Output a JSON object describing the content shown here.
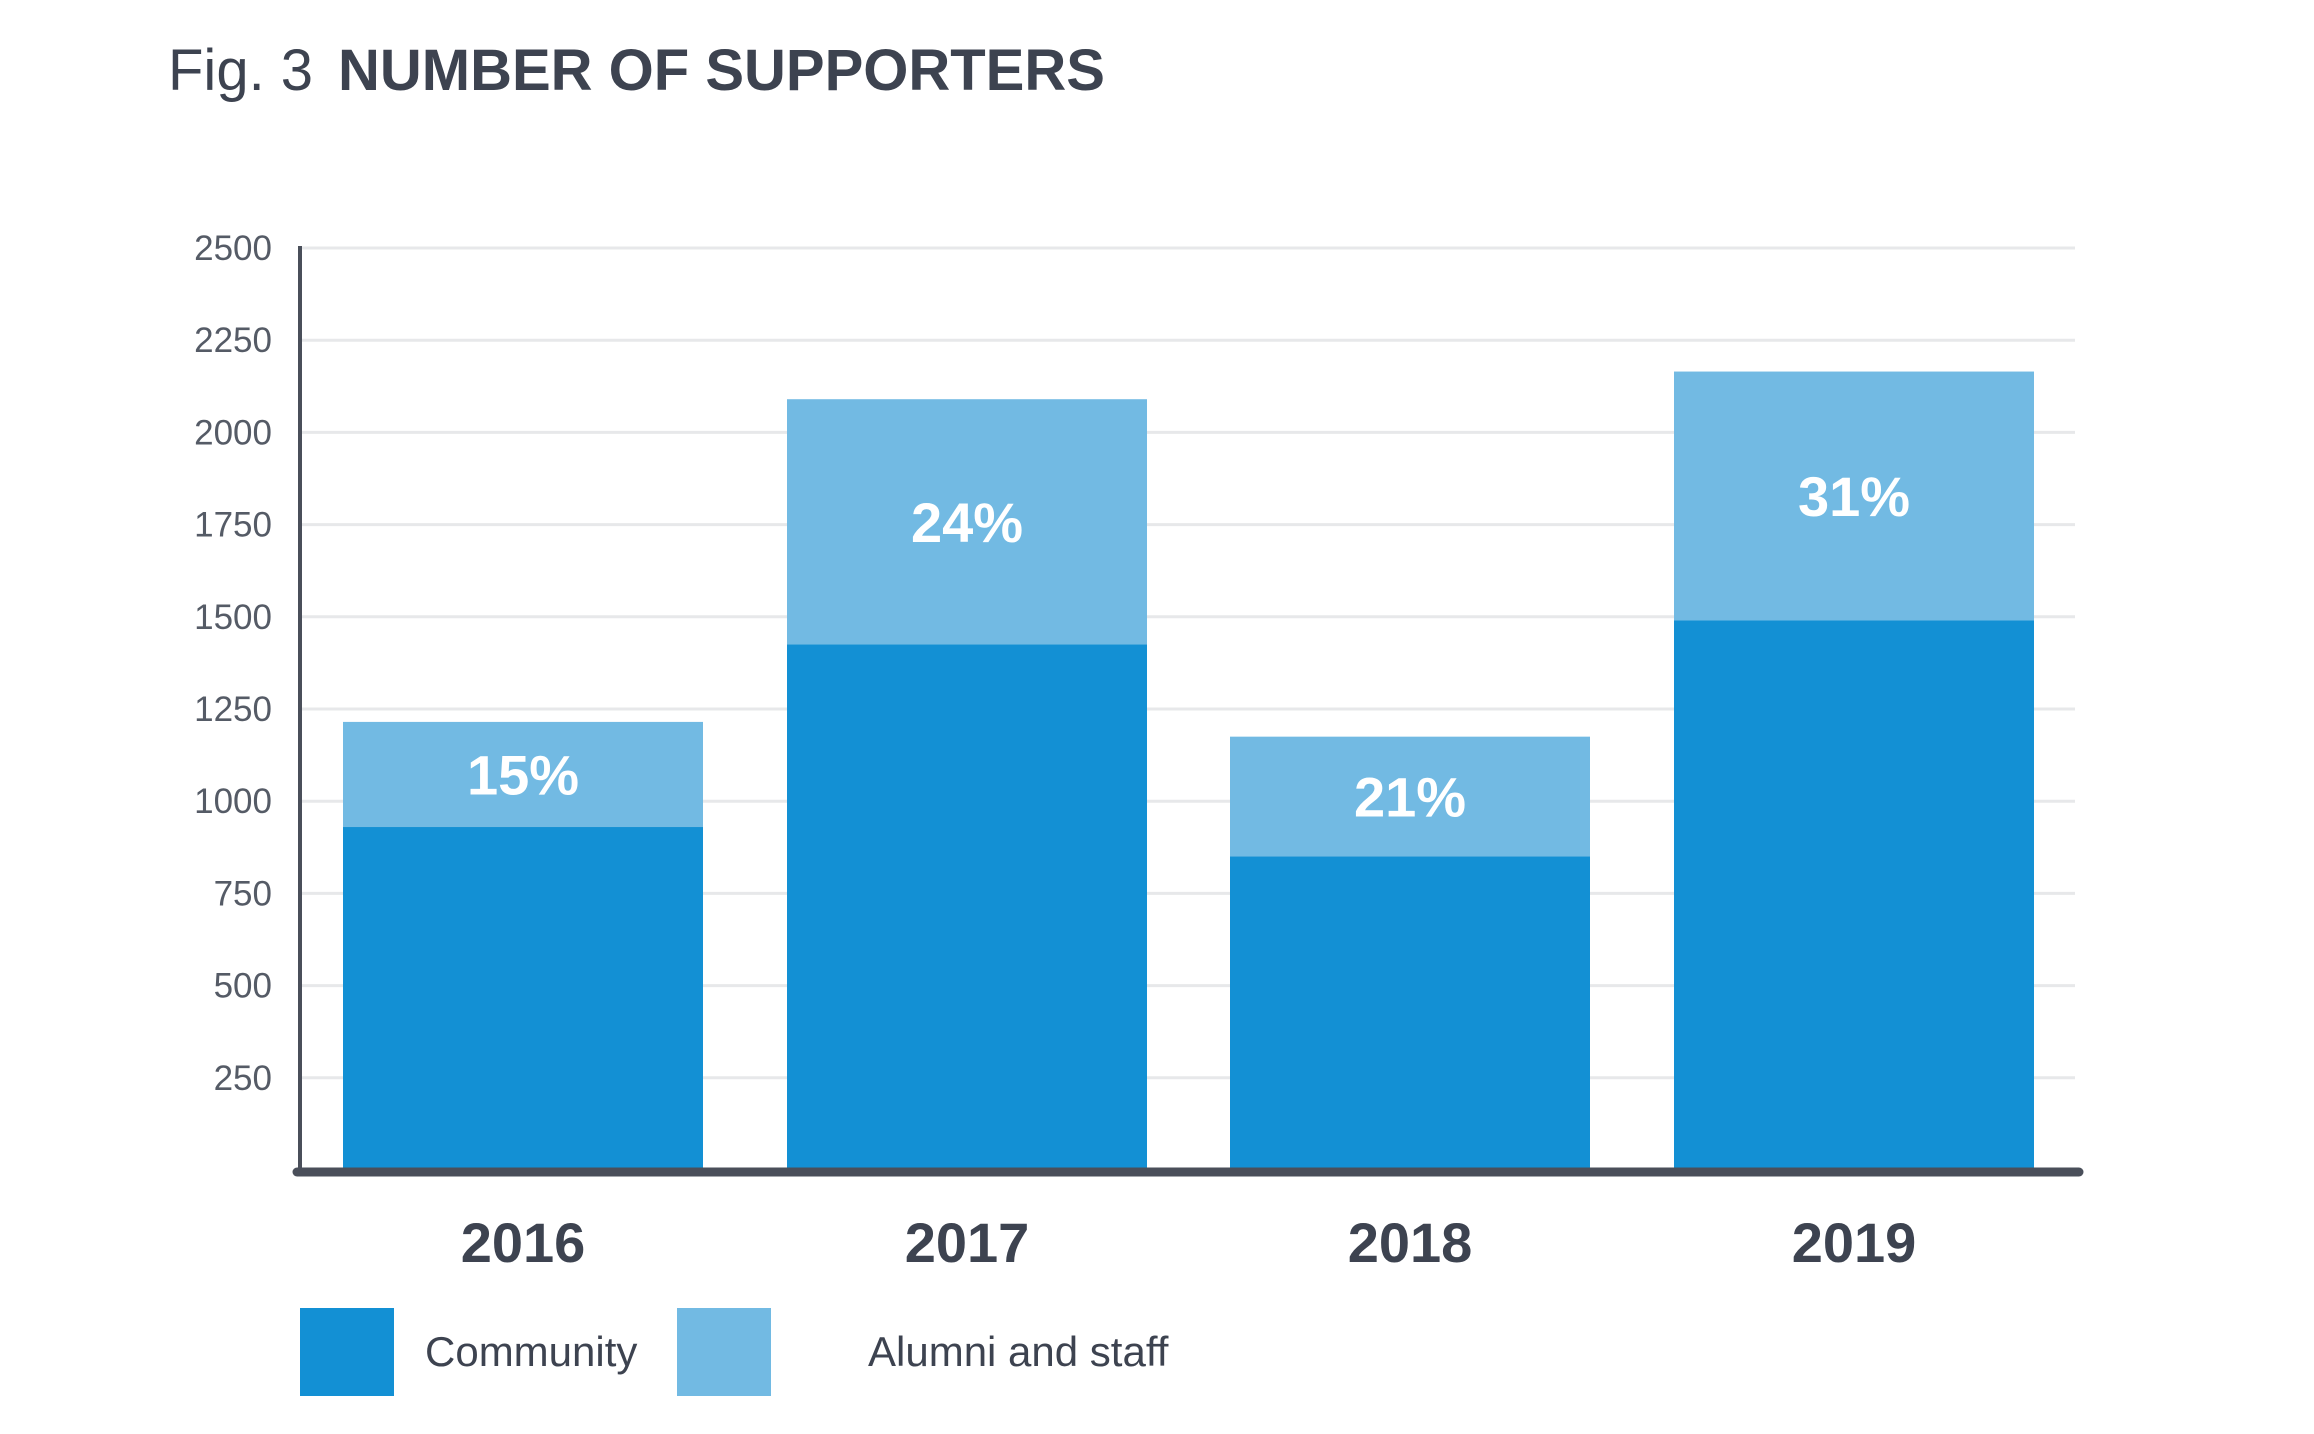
{
  "figure": {
    "label": "Fig. 3",
    "title": "NUMBER OF SUPPORTERS"
  },
  "chart_data": {
    "type": "bar",
    "stacked": true,
    "title": "NUMBER OF SUPPORTERS",
    "xlabel": "",
    "ylabel": "",
    "ylim": [
      0,
      2500
    ],
    "yticks": [
      250,
      500,
      750,
      1000,
      1250,
      1500,
      1750,
      2000,
      2250,
      2500
    ],
    "grid": true,
    "categories": [
      "2016",
      "2017",
      "2018",
      "2019"
    ],
    "series": [
      {
        "name": "Community",
        "color": "#1390d4",
        "values": [
          930,
          1425,
          850,
          1490
        ]
      },
      {
        "name": "Alumni and staff",
        "color": "#72bae3",
        "values": [
          285,
          665,
          325,
          675
        ]
      }
    ],
    "annotations": [
      "15%",
      "24%",
      "21%",
      "31%"
    ],
    "legend": {
      "position": "bottom-left",
      "entries": [
        "Community",
        "Alumni and staff"
      ]
    }
  },
  "colors": {
    "text": "#3d4350",
    "axis": "#4a4f5a",
    "grid": "#e7e8ea"
  }
}
